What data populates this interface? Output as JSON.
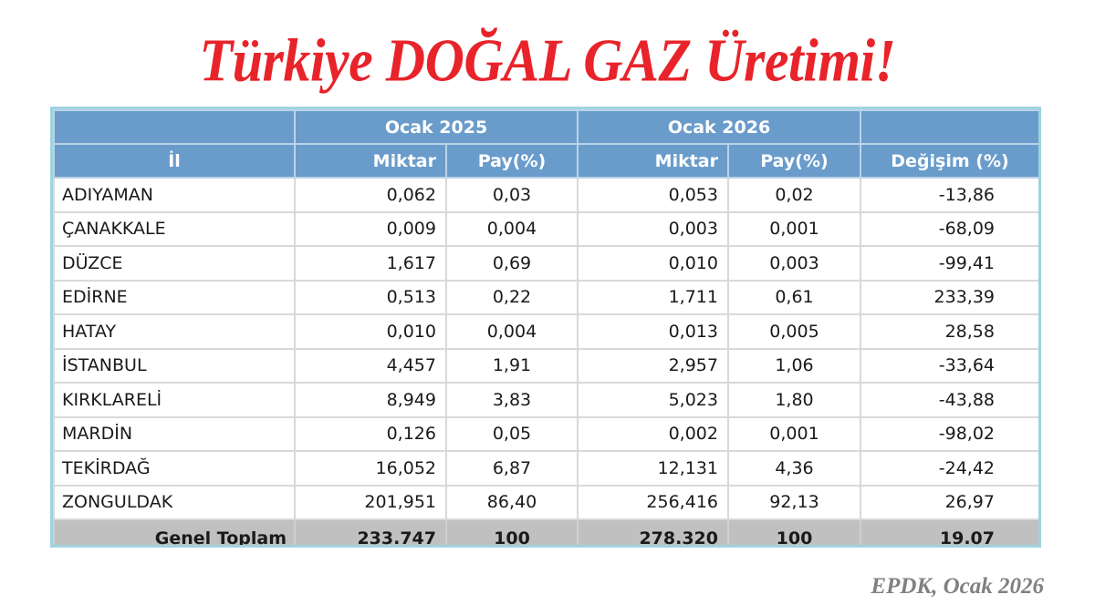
{
  "title": "Türkiye DOĞAL GAZ Üretimi!",
  "source": "EPDK, Ocak 2026",
  "table": {
    "group_headers": [
      "",
      "Ocak 2025",
      "Ocak 2026",
      ""
    ],
    "columns": [
      "İl",
      "Miktar",
      "Pay(%)",
      "Miktar",
      "Pay(%)",
      "Değişim (%)"
    ],
    "rows": [
      [
        "ADIYAMAN",
        "0,062",
        "0,03",
        "0,053",
        "0,02",
        "-13,86"
      ],
      [
        "ÇANAKKALE",
        "0,009",
        "0,004",
        "0,003",
        "0,001",
        "-68,09"
      ],
      [
        "DÜZCE",
        "1,617",
        "0,69",
        "0,010",
        "0,003",
        "-99,41"
      ],
      [
        "EDİRNE",
        "0,513",
        "0,22",
        "1,711",
        "0,61",
        "233,39"
      ],
      [
        "HATAY",
        "0,010",
        "0,004",
        "0,013",
        "0,005",
        "28,58"
      ],
      [
        "İSTANBUL",
        "4,457",
        "1,91",
        "2,957",
        "1,06",
        "-33,64"
      ],
      [
        "KIRKLARELİ",
        "8,949",
        "3,83",
        "5,023",
        "1,80",
        "-43,88"
      ],
      [
        "MARDİN",
        "0,126",
        "0,05",
        "0,002",
        "0,001",
        "-98,02"
      ],
      [
        "TEKİRDAĞ",
        "16,052",
        "6,87",
        "12,131",
        "4,36",
        "-24,42"
      ],
      [
        "ZONGULDAK",
        "201,951",
        "86,40",
        "256,416",
        "92,13",
        "26,97"
      ]
    ],
    "total": [
      "Genel Toplam",
      "233.747",
      "100",
      "278.320",
      "100",
      "19.07"
    ]
  },
  "colors": {
    "title": "#e8232a",
    "header_bg": "#6a9ccb",
    "header_text": "#ffffff",
    "total_bg": "#c0c0c0",
    "frame": "#9fd3e0",
    "source": "#808080"
  },
  "chart_data": {
    "type": "table",
    "title": "Türkiye DOĞAL GAZ Üretimi!",
    "source": "EPDK, Ocak 2026",
    "column_groups": [
      {
        "label": "Ocak 2025",
        "columns": [
          "Miktar",
          "Pay(%)"
        ]
      },
      {
        "label": "Ocak 2026",
        "columns": [
          "Miktar",
          "Pay(%)"
        ]
      },
      {
        "label": "",
        "columns": [
          "Değişim (%)"
        ]
      }
    ],
    "categories": [
      "ADIYAMAN",
      "ÇANAKKALE",
      "DÜZCE",
      "EDİRNE",
      "HATAY",
      "İSTANBUL",
      "KIRKLARELİ",
      "MARDİN",
      "TEKİRDAĞ",
      "ZONGULDAK"
    ],
    "series": [
      {
        "name": "Ocak 2025 Miktar",
        "values": [
          0.062,
          0.009,
          1.617,
          0.513,
          0.01,
          4.457,
          8.949,
          0.126,
          16.052,
          201.951
        ]
      },
      {
        "name": "Ocak 2025 Pay(%)",
        "values": [
          0.03,
          0.004,
          0.69,
          0.22,
          0.004,
          1.91,
          3.83,
          0.05,
          6.87,
          86.4
        ]
      },
      {
        "name": "Ocak 2026 Miktar",
        "values": [
          0.053,
          0.003,
          0.01,
          1.711,
          0.013,
          2.957,
          5.023,
          0.002,
          12.131,
          256.416
        ]
      },
      {
        "name": "Ocak 2026 Pay(%)",
        "values": [
          0.02,
          0.001,
          0.003,
          0.61,
          0.005,
          1.06,
          1.8,
          0.001,
          4.36,
          92.13
        ]
      },
      {
        "name": "Değişim (%)",
        "values": [
          -13.86,
          -68.09,
          -99.41,
          233.39,
          28.58,
          -33.64,
          -43.88,
          -98.02,
          -24.42,
          26.97
        ]
      }
    ],
    "totals": {
      "label": "Genel Toplam",
      "Ocak 2025 Miktar": 233.747,
      "Ocak 2025 Pay(%)": 100,
      "Ocak 2026 Miktar": 278.32,
      "Ocak 2026 Pay(%)": 100,
      "Değişim (%)": 19.07
    }
  }
}
